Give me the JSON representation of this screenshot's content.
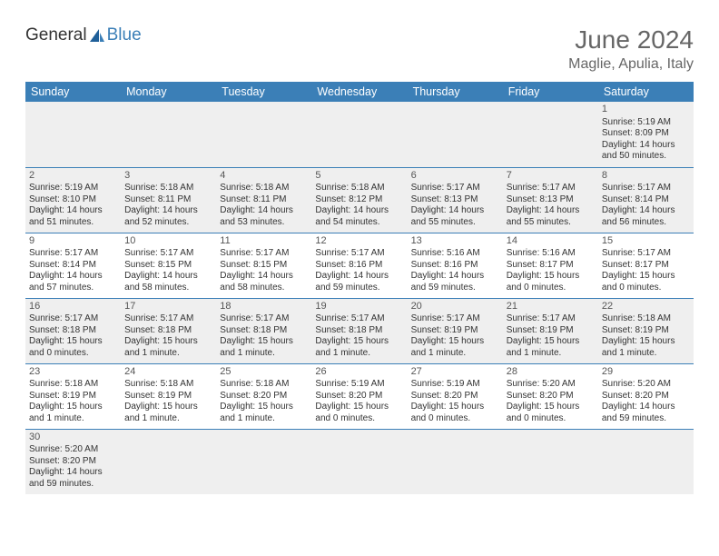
{
  "brand": {
    "part1": "General",
    "part2": "Blue"
  },
  "title": "June 2024",
  "location": "Maglie, Apulia, Italy",
  "day_names": [
    "Sunday",
    "Monday",
    "Tuesday",
    "Wednesday",
    "Thursday",
    "Friday",
    "Saturday"
  ],
  "colors": {
    "header_bg": "#3b7fb7",
    "header_text": "#ffffff",
    "row_alt_bg": "#efefef",
    "border": "#3b7fb7",
    "title_color": "#666666"
  },
  "weeks": [
    [
      null,
      null,
      null,
      null,
      null,
      null,
      {
        "n": "1",
        "sr": "Sunrise: 5:19 AM",
        "ss": "Sunset: 8:09 PM",
        "d1": "Daylight: 14 hours",
        "d2": "and 50 minutes."
      }
    ],
    [
      {
        "n": "2",
        "sr": "Sunrise: 5:19 AM",
        "ss": "Sunset: 8:10 PM",
        "d1": "Daylight: 14 hours",
        "d2": "and 51 minutes."
      },
      {
        "n": "3",
        "sr": "Sunrise: 5:18 AM",
        "ss": "Sunset: 8:11 PM",
        "d1": "Daylight: 14 hours",
        "d2": "and 52 minutes."
      },
      {
        "n": "4",
        "sr": "Sunrise: 5:18 AM",
        "ss": "Sunset: 8:11 PM",
        "d1": "Daylight: 14 hours",
        "d2": "and 53 minutes."
      },
      {
        "n": "5",
        "sr": "Sunrise: 5:18 AM",
        "ss": "Sunset: 8:12 PM",
        "d1": "Daylight: 14 hours",
        "d2": "and 54 minutes."
      },
      {
        "n": "6",
        "sr": "Sunrise: 5:17 AM",
        "ss": "Sunset: 8:13 PM",
        "d1": "Daylight: 14 hours",
        "d2": "and 55 minutes."
      },
      {
        "n": "7",
        "sr": "Sunrise: 5:17 AM",
        "ss": "Sunset: 8:13 PM",
        "d1": "Daylight: 14 hours",
        "d2": "and 55 minutes."
      },
      {
        "n": "8",
        "sr": "Sunrise: 5:17 AM",
        "ss": "Sunset: 8:14 PM",
        "d1": "Daylight: 14 hours",
        "d2": "and 56 minutes."
      }
    ],
    [
      {
        "n": "9",
        "sr": "Sunrise: 5:17 AM",
        "ss": "Sunset: 8:14 PM",
        "d1": "Daylight: 14 hours",
        "d2": "and 57 minutes."
      },
      {
        "n": "10",
        "sr": "Sunrise: 5:17 AM",
        "ss": "Sunset: 8:15 PM",
        "d1": "Daylight: 14 hours",
        "d2": "and 58 minutes."
      },
      {
        "n": "11",
        "sr": "Sunrise: 5:17 AM",
        "ss": "Sunset: 8:15 PM",
        "d1": "Daylight: 14 hours",
        "d2": "and 58 minutes."
      },
      {
        "n": "12",
        "sr": "Sunrise: 5:17 AM",
        "ss": "Sunset: 8:16 PM",
        "d1": "Daylight: 14 hours",
        "d2": "and 59 minutes."
      },
      {
        "n": "13",
        "sr": "Sunrise: 5:16 AM",
        "ss": "Sunset: 8:16 PM",
        "d1": "Daylight: 14 hours",
        "d2": "and 59 minutes."
      },
      {
        "n": "14",
        "sr": "Sunrise: 5:16 AM",
        "ss": "Sunset: 8:17 PM",
        "d1": "Daylight: 15 hours",
        "d2": "and 0 minutes."
      },
      {
        "n": "15",
        "sr": "Sunrise: 5:17 AM",
        "ss": "Sunset: 8:17 PM",
        "d1": "Daylight: 15 hours",
        "d2": "and 0 minutes."
      }
    ],
    [
      {
        "n": "16",
        "sr": "Sunrise: 5:17 AM",
        "ss": "Sunset: 8:18 PM",
        "d1": "Daylight: 15 hours",
        "d2": "and 0 minutes."
      },
      {
        "n": "17",
        "sr": "Sunrise: 5:17 AM",
        "ss": "Sunset: 8:18 PM",
        "d1": "Daylight: 15 hours",
        "d2": "and 1 minute."
      },
      {
        "n": "18",
        "sr": "Sunrise: 5:17 AM",
        "ss": "Sunset: 8:18 PM",
        "d1": "Daylight: 15 hours",
        "d2": "and 1 minute."
      },
      {
        "n": "19",
        "sr": "Sunrise: 5:17 AM",
        "ss": "Sunset: 8:18 PM",
        "d1": "Daylight: 15 hours",
        "d2": "and 1 minute."
      },
      {
        "n": "20",
        "sr": "Sunrise: 5:17 AM",
        "ss": "Sunset: 8:19 PM",
        "d1": "Daylight: 15 hours",
        "d2": "and 1 minute."
      },
      {
        "n": "21",
        "sr": "Sunrise: 5:17 AM",
        "ss": "Sunset: 8:19 PM",
        "d1": "Daylight: 15 hours",
        "d2": "and 1 minute."
      },
      {
        "n": "22",
        "sr": "Sunrise: 5:18 AM",
        "ss": "Sunset: 8:19 PM",
        "d1": "Daylight: 15 hours",
        "d2": "and 1 minute."
      }
    ],
    [
      {
        "n": "23",
        "sr": "Sunrise: 5:18 AM",
        "ss": "Sunset: 8:19 PM",
        "d1": "Daylight: 15 hours",
        "d2": "and 1 minute."
      },
      {
        "n": "24",
        "sr": "Sunrise: 5:18 AM",
        "ss": "Sunset: 8:19 PM",
        "d1": "Daylight: 15 hours",
        "d2": "and 1 minute."
      },
      {
        "n": "25",
        "sr": "Sunrise: 5:18 AM",
        "ss": "Sunset: 8:20 PM",
        "d1": "Daylight: 15 hours",
        "d2": "and 1 minute."
      },
      {
        "n": "26",
        "sr": "Sunrise: 5:19 AM",
        "ss": "Sunset: 8:20 PM",
        "d1": "Daylight: 15 hours",
        "d2": "and 0 minutes."
      },
      {
        "n": "27",
        "sr": "Sunrise: 5:19 AM",
        "ss": "Sunset: 8:20 PM",
        "d1": "Daylight: 15 hours",
        "d2": "and 0 minutes."
      },
      {
        "n": "28",
        "sr": "Sunrise: 5:20 AM",
        "ss": "Sunset: 8:20 PM",
        "d1": "Daylight: 15 hours",
        "d2": "and 0 minutes."
      },
      {
        "n": "29",
        "sr": "Sunrise: 5:20 AM",
        "ss": "Sunset: 8:20 PM",
        "d1": "Daylight: 14 hours",
        "d2": "and 59 minutes."
      }
    ],
    [
      {
        "n": "30",
        "sr": "Sunrise: 5:20 AM",
        "ss": "Sunset: 8:20 PM",
        "d1": "Daylight: 14 hours",
        "d2": "and 59 minutes."
      },
      null,
      null,
      null,
      null,
      null,
      null
    ]
  ]
}
